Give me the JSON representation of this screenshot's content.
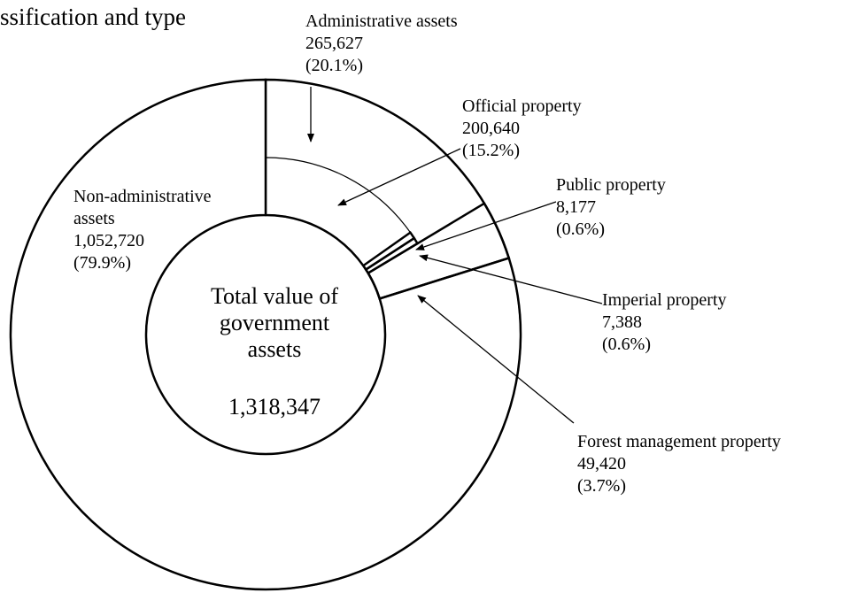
{
  "chart_data": {
    "type": "donut",
    "title": "ssification and type",
    "center_label": "Total value of government assets",
    "total": 1318347,
    "total_label": "1,318,347",
    "categories": [
      "Administrative assets",
      "Non-administrative assets"
    ],
    "values": [
      265627,
      1052720
    ],
    "value_labels": [
      "265,627",
      "1,052,720"
    ],
    "percent_labels": [
      "(20.1%)",
      "(79.9%)"
    ],
    "breakdown": {
      "categories": [
        "Official property",
        "Public property",
        "Imperial property",
        "Forest management property"
      ],
      "values": [
        200640,
        8177,
        7388,
        49420
      ],
      "value_labels": [
        "200,640",
        "8,177",
        "7,388",
        "49,420"
      ],
      "percent_labels": [
        "(15.2%)",
        "(0.6%)",
        "(0.6%)",
        "(3.7%)"
      ]
    },
    "color": "#ffffff"
  }
}
